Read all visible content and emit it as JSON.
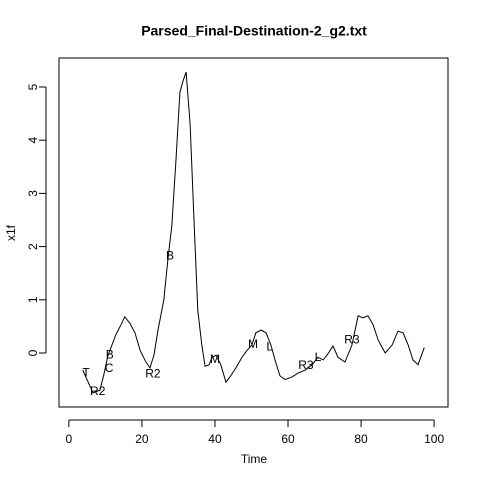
{
  "chart_data": {
    "type": "line",
    "title": "Parsed_Final-Destination-2_g2.txt",
    "x_label": "Time",
    "y_label": "x1f",
    "xlim": [
      -2.7,
      103.8
    ],
    "ylim": [
      -1.015,
      5.545
    ],
    "xticks": [
      0,
      20,
      40,
      60,
      80,
      100
    ],
    "yticks": [
      0,
      1,
      2,
      3,
      4,
      5
    ],
    "x": [
      3.8,
      6.6,
      8.5,
      9.6,
      10.7,
      11.8,
      12.9,
      14.2,
      15.3,
      16.7,
      18.1,
      19.5,
      21.1,
      22.2,
      23.3,
      24.4,
      26,
      27.1,
      28.2,
      29.3,
      30.4,
      31.2,
      32.1,
      33.2,
      34.2,
      35.3,
      36.4,
      37.3,
      38.4,
      39.2,
      40.3,
      41.6,
      43,
      44.4,
      45.8,
      47.4,
      48.8,
      50.1,
      51.2,
      52.6,
      54,
      55.3,
      56.7,
      57.8,
      59.2,
      61.1,
      62.7,
      64.7,
      66.6,
      68.2,
      69.6,
      70.7,
      72.3,
      73.7,
      75.6,
      77.5,
      79.2,
      80.5,
      81.9,
      83.3,
      84.7,
      86.6,
      88.5,
      90.1,
      91.5,
      92.9,
      94.2,
      95.6,
      97.3
    ],
    "series": [
      {
        "color": "#000000",
        "values": [
          -0.32,
          -0.75,
          -0.7,
          -0.4,
          -0.05,
          0.15,
          0.35,
          0.52,
          0.68,
          0.56,
          0.38,
          0.05,
          -0.17,
          -0.28,
          -0.04,
          0.43,
          1.0,
          1.75,
          2.4,
          3.6,
          4.9,
          5.1,
          5.28,
          4.3,
          2.6,
          0.8,
          0.15,
          -0.25,
          -0.22,
          -0.08,
          -0.04,
          -0.22,
          -0.55,
          -0.42,
          -0.27,
          -0.08,
          0.05,
          0.15,
          0.38,
          0.43,
          0.38,
          0.15,
          -0.19,
          -0.43,
          -0.5,
          -0.45,
          -0.38,
          -0.32,
          -0.22,
          -0.08,
          -0.13,
          -0.04,
          0.13,
          -0.08,
          -0.17,
          0.15,
          0.7,
          0.66,
          0.7,
          0.53,
          0.24,
          0,
          0.15,
          0.41,
          0.38,
          0.15,
          -0.13,
          -0.22,
          0.1
        ]
      }
    ],
    "annotations": [
      {
        "text": "T",
        "x": 4.7,
        "y": -0.38,
        "color": "#ff0000"
      },
      {
        "text": "R2",
        "x": 7.9,
        "y": -0.73,
        "color": "#000000"
      },
      {
        "text": "B",
        "x": 11.2,
        "y": -0.04,
        "color": "#000000"
      },
      {
        "text": "C",
        "x": 11,
        "y": -0.3,
        "color": "#ff0000"
      },
      {
        "text": "R2",
        "x": 23,
        "y": -0.4,
        "color": "#ff0000"
      },
      {
        "text": "B",
        "x": 27.7,
        "y": 1.82,
        "color": "#ff0000"
      },
      {
        "text": "M",
        "x": 40,
        "y": -0.13,
        "color": "#000000"
      },
      {
        "text": "M",
        "x": 50.4,
        "y": 0.15,
        "color": "#ff0000"
      },
      {
        "text": "L",
        "x": 55,
        "y": 0.11,
        "color": "#000000"
      },
      {
        "text": "R3",
        "x": 64.9,
        "y": -0.24,
        "color": "#000000"
      },
      {
        "text": "L",
        "x": 68.2,
        "y": -0.09,
        "color": "#ff0000"
      },
      {
        "text": "R3",
        "x": 77.5,
        "y": 0.24,
        "color": "#ff0000"
      }
    ]
  }
}
